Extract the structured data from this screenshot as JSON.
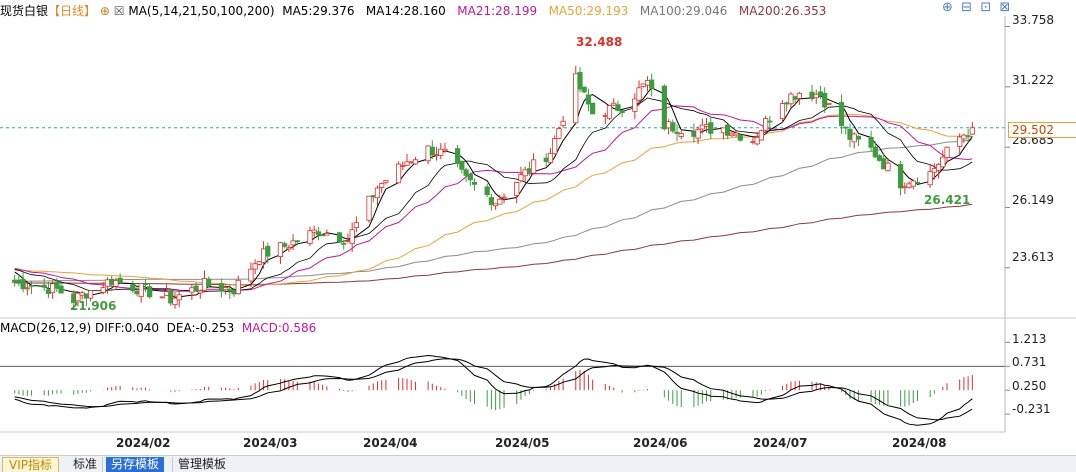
{
  "header": {
    "instrument": "现货白银",
    "period": "【日线】",
    "ma_label": "MA(5,14,21,50,100,200)",
    "ma5": "MA5:29.376",
    "ma14": "MA14:28.160",
    "ma21": "MA21:28.199",
    "ma50": "MA50:29.193",
    "ma100": "MA100:29.046",
    "ma200": "MA200:26.353"
  },
  "macd_header": {
    "label": "MACD(26,12,9)",
    "diff": "DIFF:0.040",
    "dea": "DEA:-0.253",
    "macd": "MACD:0.586"
  },
  "price_axis": {
    "ticks": [
      "33.758",
      "31.222",
      "28.685",
      "26.149",
      "23.613"
    ],
    "current": "29.502",
    "high_label": "32.488",
    "low_label1": "21.906",
    "low_label2": "26.421"
  },
  "macd_axis": {
    "ticks": [
      "1.213",
      "0.731",
      "0.250",
      "-0.231"
    ]
  },
  "date_axis": {
    "ticks": [
      "2024/02",
      "2024/03",
      "2024/04",
      "2024/05",
      "2024/06",
      "2024/07",
      "2024/08"
    ]
  },
  "tabs": [
    "VIP指标",
    "标准",
    "另存模板",
    "管理模板"
  ],
  "colors": {
    "up": "#d9322b",
    "down": "#3f9b3f",
    "ma5": "#000000",
    "ma14": "#000000",
    "ma21": "#c0189a",
    "ma50": "#e8a23a",
    "ma100": "#8c8c8c",
    "ma200": "#8b3a3a",
    "current_line": "#2aa7b8",
    "current_box": "#e8a23a"
  },
  "chart_data": [
    {
      "type": "candlestick",
      "title": "现货白银【日线】",
      "x_range": [
        "2024-01",
        "2024-08"
      ],
      "ylim": [
        21.5,
        34.2
      ],
      "y_ticks": [
        33.758,
        31.222,
        28.685,
        26.149,
        23.613
      ],
      "current_price": 29.502,
      "annotations": [
        {
          "label": "32.488",
          "x": "2024-05-20",
          "y": 32.488
        },
        {
          "label": "21.906",
          "x": "2024-01-22",
          "y": 21.906
        },
        {
          "label": "26.421",
          "x": "2024-08-05",
          "y": 26.421
        }
      ],
      "series": [
        {
          "name": "MA5",
          "last": 29.376
        },
        {
          "name": "MA14",
          "last": 28.16
        },
        {
          "name": "MA21",
          "last": 28.199
        },
        {
          "name": "MA50",
          "last": 29.193
        },
        {
          "name": "MA100",
          "last": 29.046
        },
        {
          "name": "MA200",
          "last": 26.353
        }
      ],
      "close_path": [
        [
          "2024-01-08",
          23.0
        ],
        [
          "2024-01-18",
          22.7
        ],
        [
          "2024-01-22",
          22.3
        ],
        [
          "2024-01-31",
          23.1
        ],
        [
          "2024-02-09",
          22.6
        ],
        [
          "2024-02-14",
          22.3
        ],
        [
          "2024-02-22",
          22.9
        ],
        [
          "2024-02-29",
          22.7
        ],
        [
          "2024-03-06",
          24.1
        ],
        [
          "2024-03-13",
          24.6
        ],
        [
          "2024-03-20",
          25.2
        ],
        [
          "2024-03-27",
          24.8
        ],
        [
          "2024-04-03",
          27.0
        ],
        [
          "2024-04-10",
          28.1
        ],
        [
          "2024-04-15",
          28.6
        ],
        [
          "2024-04-19",
          28.4
        ],
        [
          "2024-04-24",
          27.3
        ],
        [
          "2024-05-01",
          26.4
        ],
        [
          "2024-05-08",
          27.6
        ],
        [
          "2024-05-14",
          28.5
        ],
        [
          "2024-05-20",
          31.5
        ],
        [
          "2024-05-24",
          30.1
        ],
        [
          "2024-05-31",
          30.4
        ],
        [
          "2024-06-06",
          31.4
        ],
        [
          "2024-06-10",
          29.6
        ],
        [
          "2024-06-17",
          29.4
        ],
        [
          "2024-06-24",
          29.5
        ],
        [
          "2024-07-01",
          29.0
        ],
        [
          "2024-07-08",
          30.7
        ],
        [
          "2024-07-12",
          31.0
        ],
        [
          "2024-07-17",
          30.9
        ],
        [
          "2024-07-24",
          29.1
        ],
        [
          "2024-07-29",
          28.6
        ],
        [
          "2024-08-05",
          27.2
        ],
        [
          "2024-08-12",
          27.6
        ],
        [
          "2024-08-19",
          29.1
        ],
        [
          "2024-08-22",
          29.5
        ]
      ]
    },
    {
      "type": "line",
      "title": "MACD(26,12,9)",
      "y_ticks": [
        1.213,
        0.731,
        0.25,
        -0.231
      ],
      "series": [
        {
          "name": "DIFF",
          "last": 0.04
        },
        {
          "name": "DEA",
          "last": -0.253
        },
        {
          "name": "MACD",
          "last": 0.586
        }
      ]
    }
  ]
}
